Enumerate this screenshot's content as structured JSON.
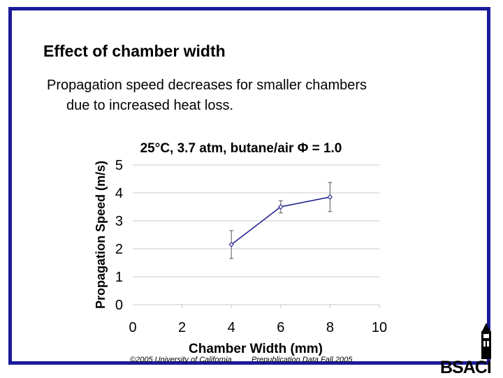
{
  "slide": {
    "title": "Effect of chamber width",
    "bullet_line1": "Propagation speed decreases for smaller chambers",
    "bullet_line2": "due to increased heat loss.",
    "copyright": "©2005 University of California",
    "prepub": "Prepublication Data Fall 2005",
    "logo": "BSAC",
    "logo_accent": "I",
    "frame_color": "#1b1b9a"
  },
  "chart_data": {
    "type": "scatter",
    "title": "25°C, 3.7 atm, butane/air Φ = 1.0",
    "xlabel": "Chamber Width (mm)",
    "ylabel": "Propagation Speed (m/s)",
    "xlim": [
      0,
      10
    ],
    "ylim": [
      0,
      5
    ],
    "xticks": [
      0,
      2,
      4,
      6,
      8,
      10
    ],
    "yticks": [
      0,
      1,
      2,
      3,
      4,
      5
    ],
    "grid": "horizontal",
    "series": [
      {
        "x": [
          4,
          6,
          8
        ],
        "y": [
          2.15,
          3.5,
          3.85
        ],
        "error": [
          0.5,
          0.22,
          0.52
        ],
        "color": "#1b1b8a",
        "marker": "diamond",
        "connected": true
      }
    ]
  }
}
